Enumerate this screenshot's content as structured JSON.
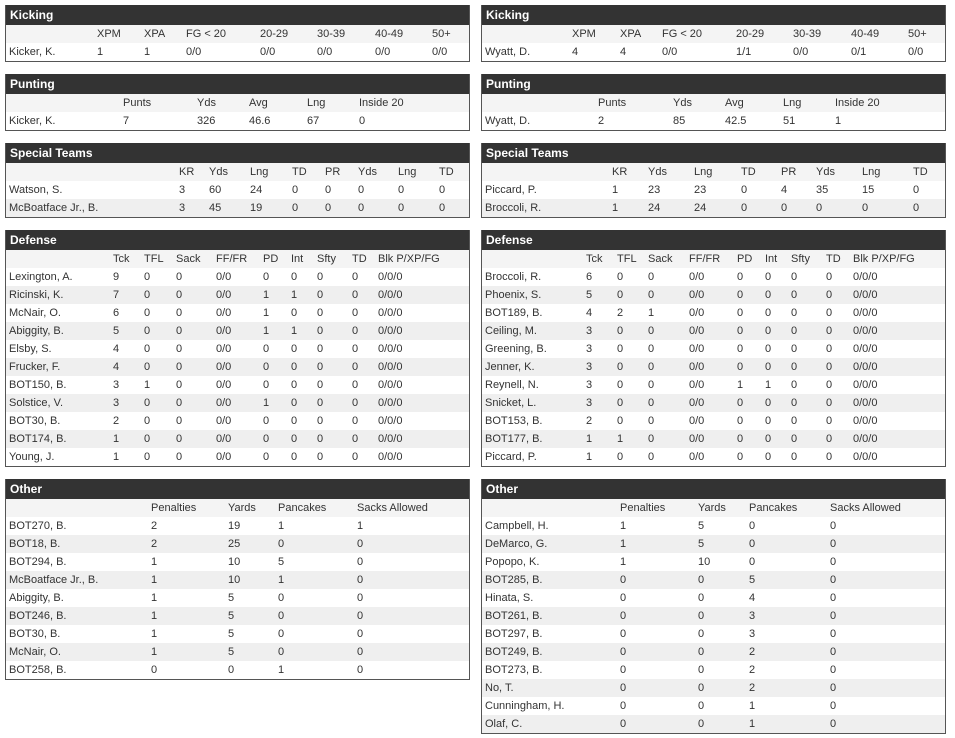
{
  "left": [
    {
      "title": "Kicking",
      "columns": [
        "XPM",
        "XPA",
        "FG < 20",
        "20-29",
        "30-39",
        "40-49",
        "50+"
      ],
      "rows": [
        [
          "Kicker, K.",
          "1",
          "1",
          "0/0",
          "0/0",
          "0/0",
          "0/0",
          "0/0"
        ]
      ]
    },
    {
      "title": "Punting",
      "columns": [
        "Punts",
        "Yds",
        "Avg",
        "Lng",
        "Inside 20"
      ],
      "rows": [
        [
          "Kicker, K.",
          "7",
          "326",
          "46.6",
          "67",
          "0"
        ]
      ]
    },
    {
      "title": "Special Teams",
      "columns": [
        "KR",
        "Yds",
        "Lng",
        "TD",
        "PR",
        "Yds",
        "Lng",
        "TD"
      ],
      "rows": [
        [
          "Watson, S.",
          "3",
          "60",
          "24",
          "0",
          "0",
          "0",
          "0",
          "0"
        ],
        [
          "McBoatface Jr., B.",
          "3",
          "45",
          "19",
          "0",
          "0",
          "0",
          "0",
          "0"
        ]
      ]
    },
    {
      "title": "Defense",
      "columns": [
        "Tck",
        "TFL",
        "Sack",
        "FF/FR",
        "PD",
        "Int",
        "Sfty",
        "TD",
        "Blk P/XP/FG"
      ],
      "rows": [
        [
          "Lexington, A.",
          "9",
          "0",
          "0",
          "0/0",
          "0",
          "0",
          "0",
          "0",
          "0/0/0"
        ],
        [
          "Ricinski, K.",
          "7",
          "0",
          "0",
          "0/0",
          "1",
          "1",
          "0",
          "0",
          "0/0/0"
        ],
        [
          "McNair, O.",
          "6",
          "0",
          "0",
          "0/0",
          "1",
          "0",
          "0",
          "0",
          "0/0/0"
        ],
        [
          "Abiggity, B.",
          "5",
          "0",
          "0",
          "0/0",
          "1",
          "1",
          "0",
          "0",
          "0/0/0"
        ],
        [
          "Elsby, S.",
          "4",
          "0",
          "0",
          "0/0",
          "0",
          "0",
          "0",
          "0",
          "0/0/0"
        ],
        [
          "Frucker, F.",
          "4",
          "0",
          "0",
          "0/0",
          "0",
          "0",
          "0",
          "0",
          "0/0/0"
        ],
        [
          "BOT150, B.",
          "3",
          "1",
          "0",
          "0/0",
          "0",
          "0",
          "0",
          "0",
          "0/0/0"
        ],
        [
          "Solstice, V.",
          "3",
          "0",
          "0",
          "0/0",
          "1",
          "0",
          "0",
          "0",
          "0/0/0"
        ],
        [
          "BOT30, B.",
          "2",
          "0",
          "0",
          "0/0",
          "0",
          "0",
          "0",
          "0",
          "0/0/0"
        ],
        [
          "BOT174, B.",
          "1",
          "0",
          "0",
          "0/0",
          "0",
          "0",
          "0",
          "0",
          "0/0/0"
        ],
        [
          "Young, J.",
          "1",
          "0",
          "0",
          "0/0",
          "0",
          "0",
          "0",
          "0",
          "0/0/0"
        ]
      ]
    },
    {
      "title": "Other",
      "columns": [
        "Penalties",
        "Yards",
        "Pancakes",
        "Sacks Allowed"
      ],
      "rows": [
        [
          "BOT270, B.",
          "2",
          "19",
          "1",
          "1"
        ],
        [
          "BOT18, B.",
          "2",
          "25",
          "0",
          "0"
        ],
        [
          "BOT294, B.",
          "1",
          "10",
          "5",
          "0"
        ],
        [
          "McBoatface Jr., B.",
          "1",
          "10",
          "1",
          "0"
        ],
        [
          "Abiggity, B.",
          "1",
          "5",
          "0",
          "0"
        ],
        [
          "BOT246, B.",
          "1",
          "5",
          "0",
          "0"
        ],
        [
          "BOT30, B.",
          "1",
          "5",
          "0",
          "0"
        ],
        [
          "McNair, O.",
          "1",
          "5",
          "0",
          "0"
        ],
        [
          "BOT258, B.",
          "0",
          "0",
          "1",
          "0"
        ]
      ]
    }
  ],
  "right": [
    {
      "title": "Kicking",
      "columns": [
        "XPM",
        "XPA",
        "FG < 20",
        "20-29",
        "30-39",
        "40-49",
        "50+"
      ],
      "rows": [
        [
          "Wyatt, D.",
          "4",
          "4",
          "0/0",
          "1/1",
          "0/0",
          "0/1",
          "0/0"
        ]
      ]
    },
    {
      "title": "Punting",
      "columns": [
        "Punts",
        "Yds",
        "Avg",
        "Lng",
        "Inside 20"
      ],
      "rows": [
        [
          "Wyatt, D.",
          "2",
          "85",
          "42.5",
          "51",
          "1"
        ]
      ]
    },
    {
      "title": "Special Teams",
      "columns": [
        "KR",
        "Yds",
        "Lng",
        "TD",
        "PR",
        "Yds",
        "Lng",
        "TD"
      ],
      "rows": [
        [
          "Piccard, P.",
          "1",
          "23",
          "23",
          "0",
          "4",
          "35",
          "15",
          "0"
        ],
        [
          "Broccoli, R.",
          "1",
          "24",
          "24",
          "0",
          "0",
          "0",
          "0",
          "0"
        ]
      ]
    },
    {
      "title": "Defense",
      "columns": [
        "Tck",
        "TFL",
        "Sack",
        "FF/FR",
        "PD",
        "Int",
        "Sfty",
        "TD",
        "Blk P/XP/FG"
      ],
      "rows": [
        [
          "Broccoli, R.",
          "6",
          "0",
          "0",
          "0/0",
          "0",
          "0",
          "0",
          "0",
          "0/0/0"
        ],
        [
          "Phoenix, S.",
          "5",
          "0",
          "0",
          "0/0",
          "0",
          "0",
          "0",
          "0",
          "0/0/0"
        ],
        [
          "BOT189, B.",
          "4",
          "2",
          "1",
          "0/0",
          "0",
          "0",
          "0",
          "0",
          "0/0/0"
        ],
        [
          "Ceiling, M.",
          "3",
          "0",
          "0",
          "0/0",
          "0",
          "0",
          "0",
          "0",
          "0/0/0"
        ],
        [
          "Greening, B.",
          "3",
          "0",
          "0",
          "0/0",
          "0",
          "0",
          "0",
          "0",
          "0/0/0"
        ],
        [
          "Jenner, K.",
          "3",
          "0",
          "0",
          "0/0",
          "0",
          "0",
          "0",
          "0",
          "0/0/0"
        ],
        [
          "Reynell, N.",
          "3",
          "0",
          "0",
          "0/0",
          "1",
          "1",
          "0",
          "0",
          "0/0/0"
        ],
        [
          "Snicket, L.",
          "3",
          "0",
          "0",
          "0/0",
          "0",
          "0",
          "0",
          "0",
          "0/0/0"
        ],
        [
          "BOT153, B.",
          "2",
          "0",
          "0",
          "0/0",
          "0",
          "0",
          "0",
          "0",
          "0/0/0"
        ],
        [
          "BOT177, B.",
          "1",
          "1",
          "0",
          "0/0",
          "0",
          "0",
          "0",
          "0",
          "0/0/0"
        ],
        [
          "Piccard, P.",
          "1",
          "0",
          "0",
          "0/0",
          "0",
          "0",
          "0",
          "0",
          "0/0/0"
        ]
      ]
    },
    {
      "title": "Other",
      "columns": [
        "Penalties",
        "Yards",
        "Pancakes",
        "Sacks Allowed"
      ],
      "rows": [
        [
          "Campbell, H.",
          "1",
          "5",
          "0",
          "0"
        ],
        [
          "DeMarco, G.",
          "1",
          "5",
          "0",
          "0"
        ],
        [
          "Popopo, K.",
          "1",
          "10",
          "0",
          "0"
        ],
        [
          "BOT285, B.",
          "0",
          "0",
          "5",
          "0"
        ],
        [
          "Hinata, S.",
          "0",
          "0",
          "4",
          "0"
        ],
        [
          "BOT261, B.",
          "0",
          "0",
          "3",
          "0"
        ],
        [
          "BOT297, B.",
          "0",
          "0",
          "3",
          "0"
        ],
        [
          "BOT249, B.",
          "0",
          "0",
          "2",
          "0"
        ],
        [
          "BOT273, B.",
          "0",
          "0",
          "2",
          "0"
        ],
        [
          "No, T.",
          "0",
          "0",
          "2",
          "0"
        ],
        [
          "Cunningham, H.",
          "0",
          "0",
          "1",
          "0"
        ],
        [
          "Olaf, C.",
          "0",
          "0",
          "1",
          "0"
        ]
      ]
    }
  ]
}
